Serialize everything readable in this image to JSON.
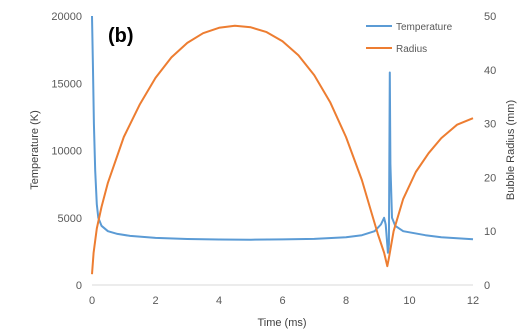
{
  "chart_data": {
    "type": "line",
    "panel_label": "(b)",
    "xlabel": "Time (ms)",
    "ylabel_left": "Temperature (K)",
    "ylabel_right": "Bubble Radius (mm)",
    "xlim": [
      0,
      12
    ],
    "ylim_left": [
      0,
      20000
    ],
    "ylim_right": [
      0,
      50
    ],
    "x_ticks": [
      "0",
      "2",
      "4",
      "6",
      "8",
      "10",
      "12"
    ],
    "y_left_ticks": [
      "0",
      "5000",
      "10000",
      "15000",
      "20000"
    ],
    "y_right_ticks": [
      "0",
      "10",
      "20",
      "30",
      "40",
      "50"
    ],
    "grid": false,
    "legend_position": "top-right",
    "series": [
      {
        "name": "Temperature",
        "axis": "left",
        "color": "#5b9bd5",
        "points": [
          [
            0.0,
            20000
          ],
          [
            0.03,
            16000
          ],
          [
            0.06,
            12000
          ],
          [
            0.1,
            8500
          ],
          [
            0.15,
            6000
          ],
          [
            0.2,
            5000
          ],
          [
            0.3,
            4400
          ],
          [
            0.5,
            4000
          ],
          [
            0.8,
            3800
          ],
          [
            1.2,
            3650
          ],
          [
            2.0,
            3500
          ],
          [
            3.0,
            3420
          ],
          [
            4.0,
            3380
          ],
          [
            5.0,
            3370
          ],
          [
            6.0,
            3390
          ],
          [
            7.0,
            3430
          ],
          [
            8.0,
            3550
          ],
          [
            8.5,
            3700
          ],
          [
            8.9,
            4000
          ],
          [
            9.1,
            4500
          ],
          [
            9.2,
            5000
          ],
          [
            9.25,
            4500
          ],
          [
            9.3,
            3000
          ],
          [
            9.32,
            2400
          ],
          [
            9.35,
            3000
          ],
          [
            9.38,
            15800
          ],
          [
            9.4,
            9000
          ],
          [
            9.45,
            5000
          ],
          [
            9.55,
            4400
          ],
          [
            9.8,
            4000
          ],
          [
            10.5,
            3700
          ],
          [
            11.0,
            3550
          ],
          [
            12.0,
            3400
          ]
        ]
      },
      {
        "name": "Radius",
        "axis": "right",
        "color": "#ed7d31",
        "points": [
          [
            0.0,
            2
          ],
          [
            0.05,
            6
          ],
          [
            0.15,
            10.5
          ],
          [
            0.3,
            14.5
          ],
          [
            0.5,
            19
          ],
          [
            1.0,
            27.5
          ],
          [
            1.5,
            33.5
          ],
          [
            2.0,
            38.5
          ],
          [
            2.5,
            42.3
          ],
          [
            3.0,
            45
          ],
          [
            3.5,
            46.8
          ],
          [
            4.0,
            47.8
          ],
          [
            4.5,
            48.2
          ],
          [
            5.0,
            47.9
          ],
          [
            5.5,
            47
          ],
          [
            6.0,
            45.3
          ],
          [
            6.5,
            42.7
          ],
          [
            7.0,
            39
          ],
          [
            7.5,
            34
          ],
          [
            8.0,
            27.5
          ],
          [
            8.5,
            19.5
          ],
          [
            8.8,
            13.5
          ],
          [
            9.0,
            9.5
          ],
          [
            9.2,
            6
          ],
          [
            9.3,
            3.5
          ],
          [
            9.35,
            5
          ],
          [
            9.5,
            10
          ],
          [
            9.8,
            16
          ],
          [
            10.2,
            21
          ],
          [
            10.6,
            24.5
          ],
          [
            11.0,
            27.3
          ],
          [
            11.5,
            29.8
          ],
          [
            12.0,
            31
          ]
        ]
      }
    ]
  }
}
